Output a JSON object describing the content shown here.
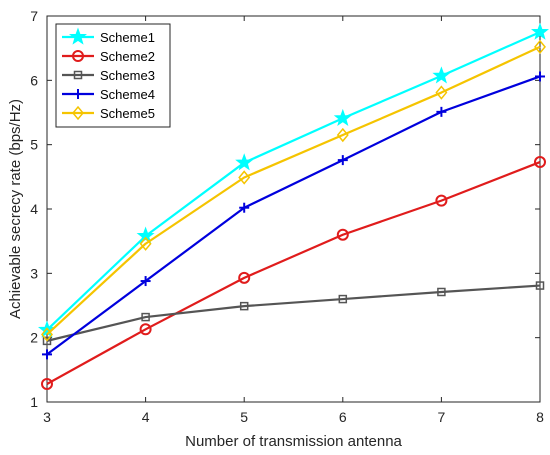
{
  "chart_data": {
    "type": "line",
    "title": "",
    "xlabel": "Number of transmission antenna",
    "ylabel": "Achievable secrecy rate (bps/Hz)",
    "x": [
      3,
      4,
      5,
      6,
      7,
      8
    ],
    "xlim": [
      3,
      8
    ],
    "ylim": [
      1,
      7
    ],
    "xticks": [
      3,
      4,
      5,
      6,
      7,
      8
    ],
    "yticks": [
      1,
      2,
      3,
      4,
      5,
      6,
      7
    ],
    "grid": false,
    "legend_position": "top-left",
    "series": [
      {
        "name": "Scheme1",
        "color": "#00FFFF",
        "marker": "star",
        "values": [
          2.12,
          3.58,
          4.72,
          5.41,
          6.07,
          6.75
        ]
      },
      {
        "name": "Scheme2",
        "color": "#E01C1C",
        "marker": "circle",
        "values": [
          1.28,
          2.13,
          2.93,
          3.6,
          4.13,
          4.73
        ]
      },
      {
        "name": "Scheme3",
        "color": "#555555",
        "marker": "square",
        "values": [
          1.95,
          2.32,
          2.49,
          2.6,
          2.71,
          2.81
        ]
      },
      {
        "name": "Scheme4",
        "color": "#0000DD",
        "marker": "plus",
        "values": [
          1.74,
          2.88,
          4.02,
          4.76,
          5.51,
          6.06
        ]
      },
      {
        "name": "Scheme5",
        "color": "#F5C400",
        "marker": "diamond",
        "values": [
          2.05,
          3.46,
          4.49,
          5.15,
          5.81,
          6.52
        ]
      }
    ]
  }
}
